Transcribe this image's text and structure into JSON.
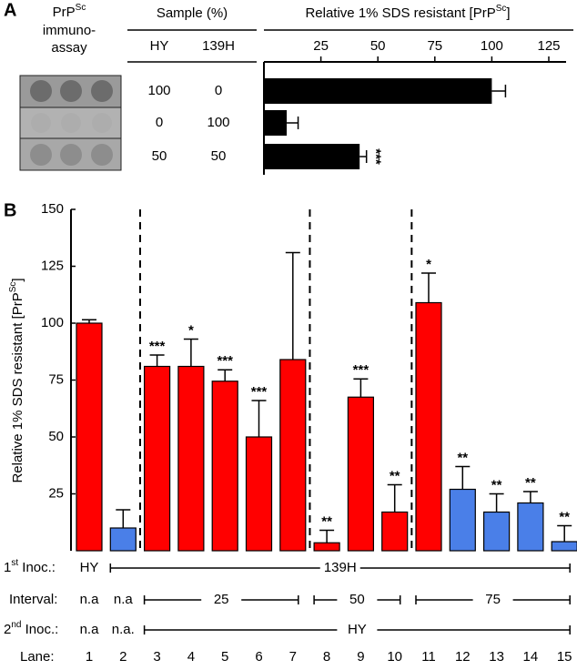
{
  "chart_data": [
    {
      "type": "bar",
      "orientation": "horizontal",
      "panel_label": "A",
      "title": [
        "Relative 1% SDS resistant [PrP",
        "Sc",
        "]"
      ],
      "assay_header": [
        "PrP",
        "Sc",
        "immuno-",
        "assay"
      ],
      "table": {
        "header": "Sample (%)",
        "columns": [
          "HY",
          "139H"
        ],
        "rows": [
          [
            100,
            0
          ],
          [
            0,
            100
          ],
          [
            50,
            50
          ]
        ]
      },
      "values": [
        100,
        10,
        42
      ],
      "errors": [
        6,
        5,
        3
      ],
      "annotations": [
        null,
        null,
        "***"
      ],
      "color": "#000000",
      "xlim": [
        0,
        125
      ],
      "xticks": [
        25,
        50,
        75,
        100,
        125
      ]
    },
    {
      "type": "bar",
      "orientation": "vertical",
      "panel_label": "B",
      "ylabel": [
        "Relative 1% SDS resistant [PrP",
        "Sc",
        "]"
      ],
      "category_label": "Lane:",
      "categories": [
        "1",
        "2",
        "3",
        "4",
        "5",
        "6",
        "7",
        "8",
        "9",
        "10",
        "11",
        "12",
        "13",
        "14",
        "15"
      ],
      "values": [
        100,
        10,
        81,
        81,
        74.5,
        50,
        84,
        3.5,
        67.5,
        17,
        109,
        27,
        17,
        21,
        4
      ],
      "errors": [
        1.5,
        8,
        5,
        12,
        5,
        16,
        47,
        5.5,
        8,
        12,
        13,
        10,
        8,
        5,
        7
      ],
      "annotations": [
        null,
        null,
        "***",
        "*",
        "***",
        "***",
        null,
        "**",
        "***",
        "**",
        "*",
        "**",
        "**",
        "**",
        "**"
      ],
      "colors": [
        "#ff0000",
        "#4a7fe8",
        "#ff0000",
        "#ff0000",
        "#ff0000",
        "#ff0000",
        "#ff0000",
        "#ff0000",
        "#ff0000",
        "#ff0000",
        "#ff0000",
        "#4a7fe8",
        "#4a7fe8",
        "#4a7fe8",
        "#4a7fe8"
      ],
      "ylim": [
        0,
        150
      ],
      "yticks": [
        25,
        50,
        75,
        100,
        125,
        150
      ],
      "conditions": [
        {
          "label": [
            "1",
            "st",
            " Inoc.:"
          ],
          "entries": [
            "HY",
            "139H"
          ]
        },
        {
          "label": [
            "Interval:"
          ],
          "entries": [
            "n.a",
            "n.a",
            "25",
            "50",
            "75"
          ]
        },
        {
          "label": [
            "2",
            "nd",
            " Inoc.:"
          ],
          "entries": [
            "n.a",
            "n.a.",
            "HY"
          ]
        }
      ]
    }
  ]
}
